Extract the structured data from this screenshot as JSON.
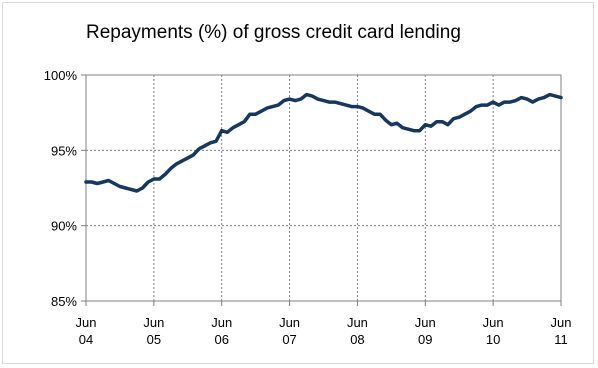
{
  "chart_data": {
    "type": "line",
    "title": "Repayments (%) of gross credit card lending",
    "xlabel": "",
    "ylabel": "",
    "ylim": [
      85,
      100
    ],
    "yticks": [
      {
        "value": 85,
        "label": "85%"
      },
      {
        "value": 90,
        "label": "90%"
      },
      {
        "value": 95,
        "label": "95%"
      },
      {
        "value": 100,
        "label": "100%"
      }
    ],
    "xticks": [
      {
        "value": 2004.417,
        "month": "Jun",
        "year": "04"
      },
      {
        "value": 2005.417,
        "month": "Jun",
        "year": "05"
      },
      {
        "value": 2006.417,
        "month": "Jun",
        "year": "06"
      },
      {
        "value": 2007.417,
        "month": "Jun",
        "year": "07"
      },
      {
        "value": 2008.417,
        "month": "Jun",
        "year": "08"
      },
      {
        "value": 2009.417,
        "month": "Jun",
        "year": "09"
      },
      {
        "value": 2010.417,
        "month": "Jun",
        "year": "10"
      },
      {
        "value": 2011.417,
        "month": "Jun",
        "year": "11"
      }
    ],
    "grid": true,
    "line_color": "#17375e",
    "series": [
      {
        "name": "",
        "x": [
          2004.417,
          2004.5,
          2004.583,
          2004.667,
          2004.75,
          2004.833,
          2004.917,
          2005.0,
          2005.083,
          2005.167,
          2005.25,
          2005.333,
          2005.417,
          2005.5,
          2005.583,
          2005.667,
          2005.75,
          2005.833,
          2005.917,
          2006.0,
          2006.083,
          2006.167,
          2006.25,
          2006.333,
          2006.417,
          2006.5,
          2006.583,
          2006.667,
          2006.75,
          2006.833,
          2006.917,
          2007.0,
          2007.083,
          2007.167,
          2007.25,
          2007.333,
          2007.417,
          2007.5,
          2007.583,
          2007.667,
          2007.75,
          2007.833,
          2007.917,
          2008.0,
          2008.083,
          2008.167,
          2008.25,
          2008.333,
          2008.417,
          2008.5,
          2008.583,
          2008.667,
          2008.75,
          2008.833,
          2008.917,
          2009.0,
          2009.083,
          2009.167,
          2009.25,
          2009.333,
          2009.417,
          2009.5,
          2009.583,
          2009.667,
          2009.75,
          2009.833,
          2009.917,
          2010.0,
          2010.083,
          2010.167,
          2010.25,
          2010.333,
          2010.417,
          2010.5,
          2010.583,
          2010.667,
          2010.75,
          2010.833,
          2010.917,
          2011.0,
          2011.083,
          2011.167,
          2011.25,
          2011.333,
          2011.417
        ],
        "values": [
          92.9,
          92.9,
          92.8,
          92.9,
          93.0,
          92.8,
          92.6,
          92.5,
          92.4,
          92.3,
          92.5,
          92.9,
          93.1,
          93.1,
          93.4,
          93.8,
          94.1,
          94.3,
          94.5,
          94.7,
          95.1,
          95.3,
          95.5,
          95.6,
          96.3,
          96.2,
          96.5,
          96.7,
          96.9,
          97.4,
          97.4,
          97.6,
          97.8,
          97.9,
          98.0,
          98.3,
          98.4,
          98.3,
          98.4,
          98.7,
          98.6,
          98.4,
          98.3,
          98.2,
          98.2,
          98.1,
          98.0,
          97.9,
          97.9,
          97.8,
          97.6,
          97.4,
          97.4,
          97.0,
          96.7,
          96.8,
          96.5,
          96.4,
          96.3,
          96.3,
          96.7,
          96.6,
          96.9,
          96.9,
          96.7,
          97.1,
          97.2,
          97.4,
          97.6,
          97.9,
          98.0,
          98.0,
          98.2,
          98.0,
          98.2,
          98.2,
          98.3,
          98.5,
          98.4,
          98.2,
          98.4,
          98.5,
          98.7,
          98.6,
          98.5
        ]
      }
    ]
  }
}
